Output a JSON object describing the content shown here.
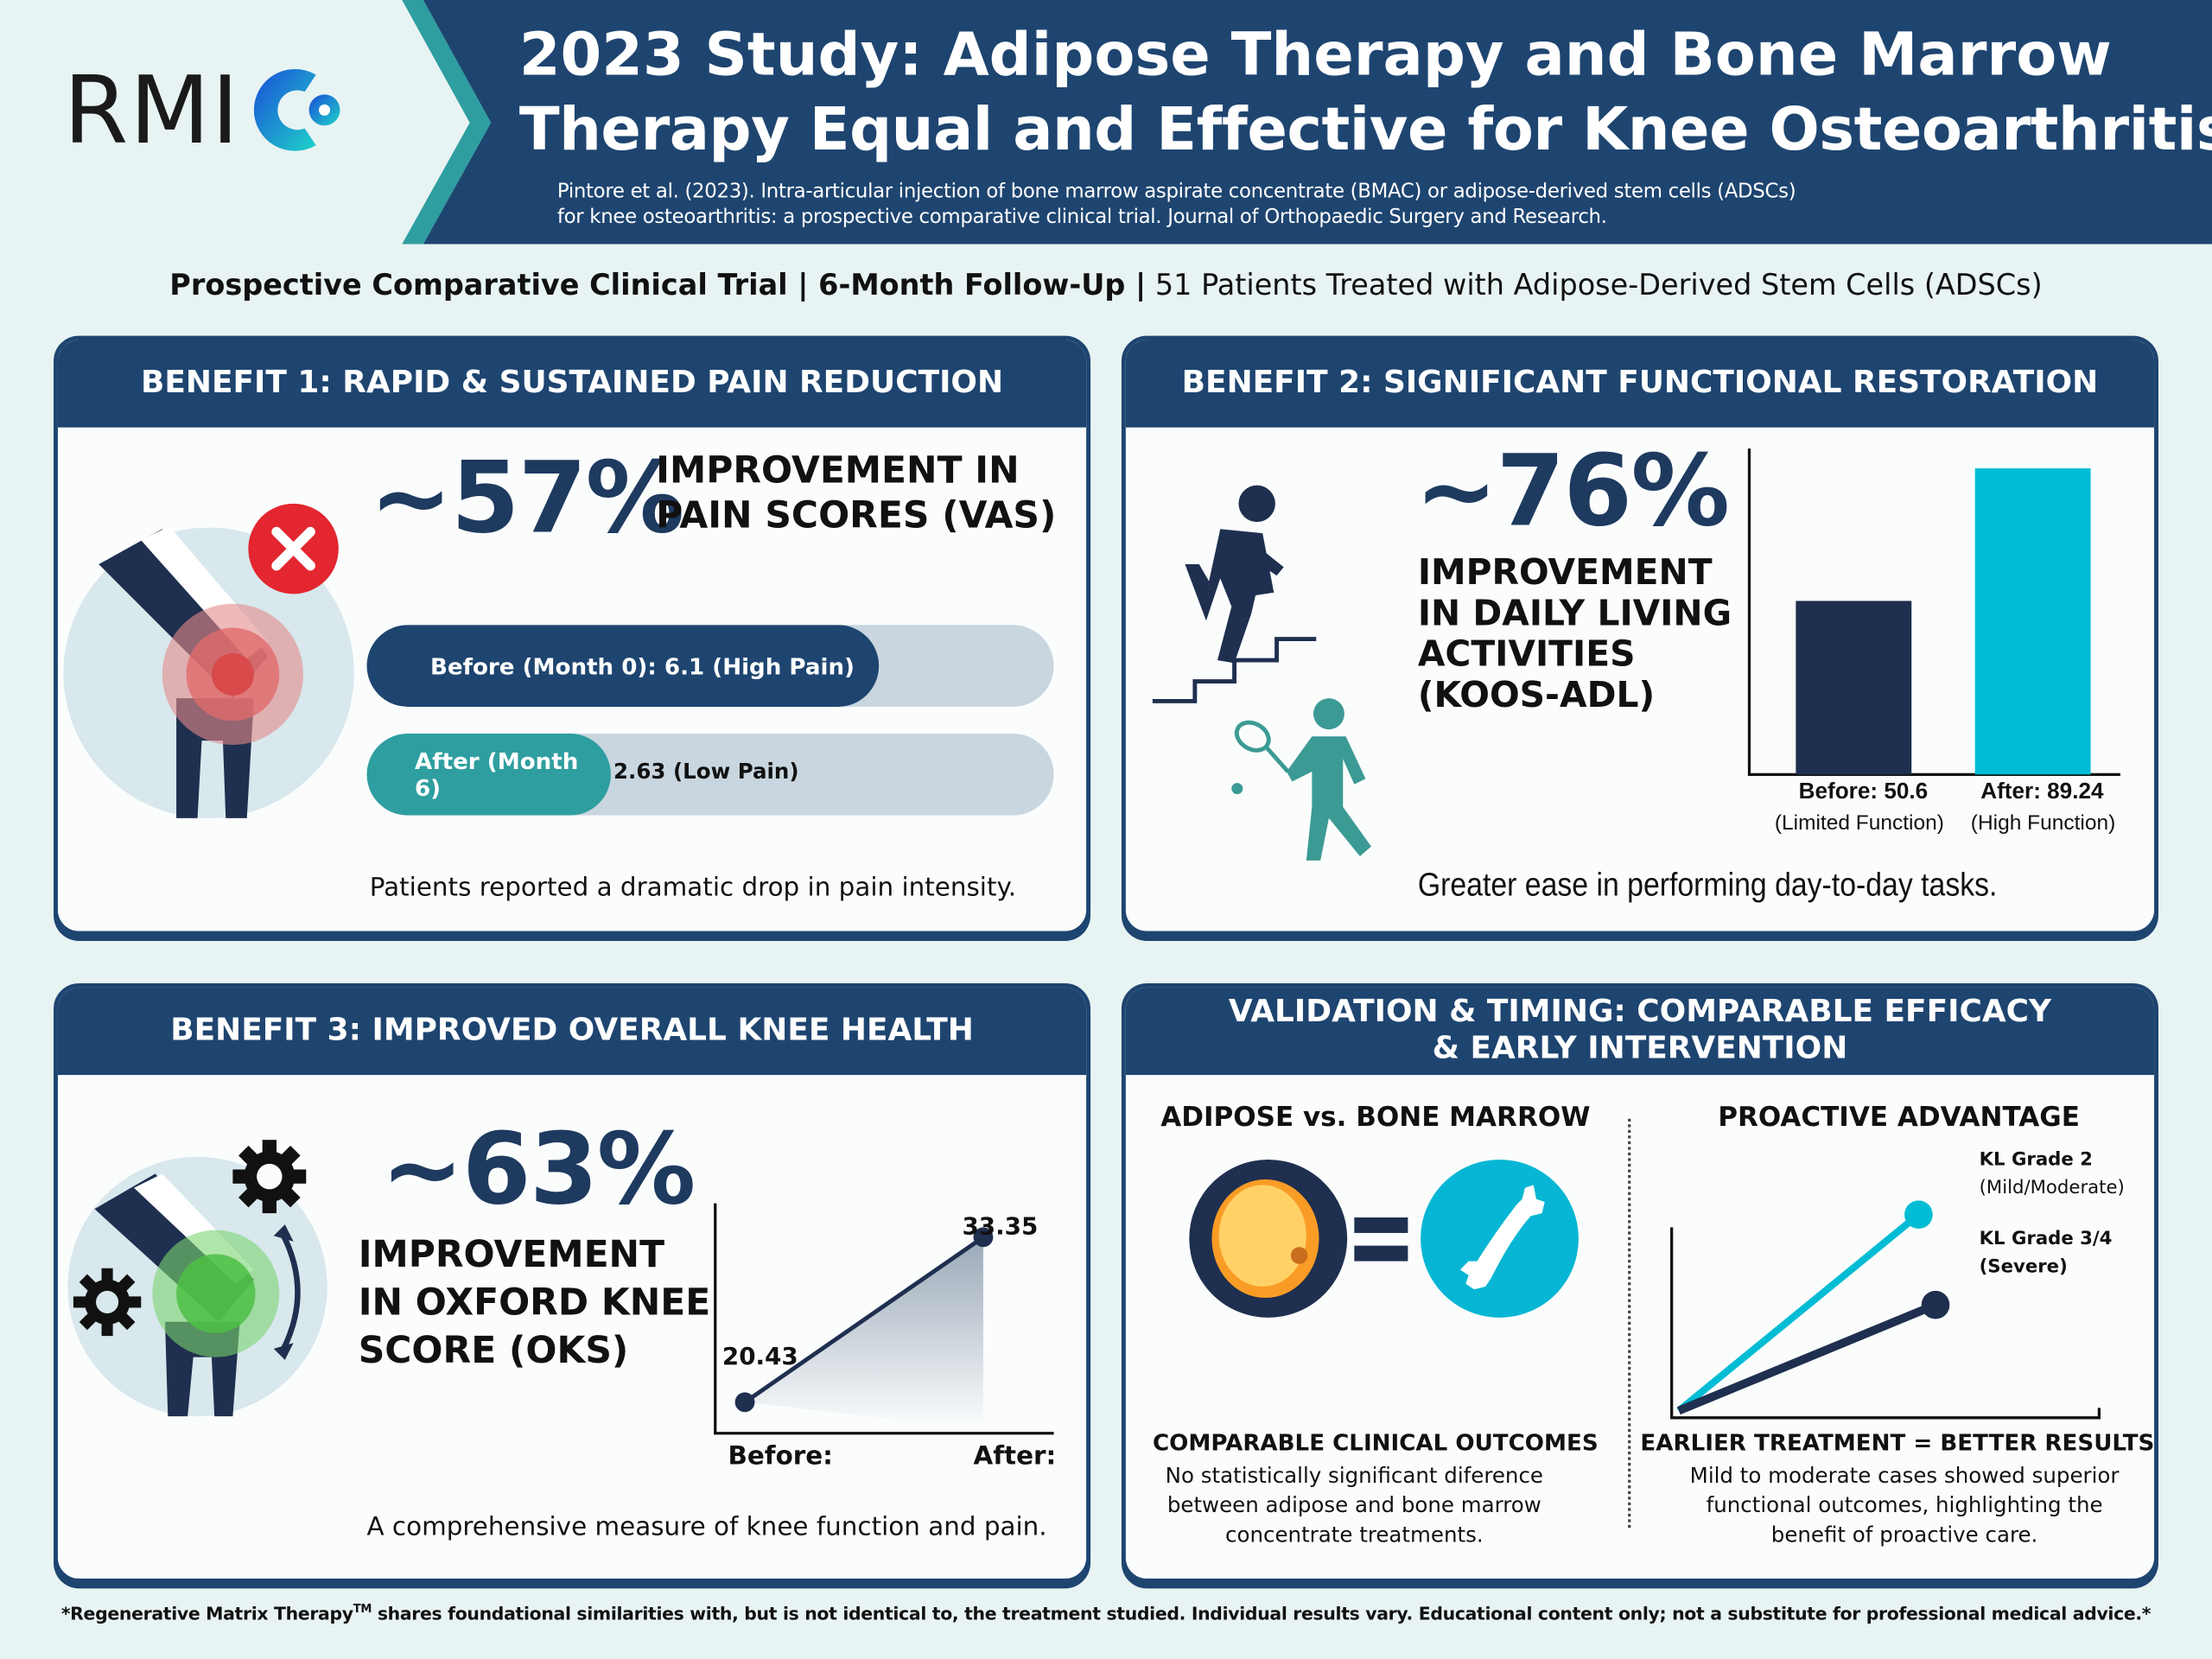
{
  "header": {
    "logo_text": "RMI",
    "title_line1": "2023 Study: Adipose Therapy and Bone Marrow",
    "title_line2": "Therapy Equal and Effective for Knee Osteoarthritis",
    "citation_line1": "Pintore et al. (2023). Intra-articular injection of bone marrow aspirate concentrate (BMAC) or adipose-derived stem cells (ADSCs)",
    "citation_line2": "for knee osteoarthritis: a prospective comparative clinical trial. Journal of Orthopaedic Surgery and Research.",
    "colors": {
      "navy": "#1e4570",
      "teal": "#2e9ea0",
      "cyan": "#00bcd4"
    }
  },
  "subtitle": {
    "bold": "Prospective Comparative Clinical Trial | 6-Month Follow-Up |",
    "regular": " 51 Patients Treated with Adipose-Derived Stem Cells (ADSCs)"
  },
  "benefit1": {
    "title": "BENEFIT 1: RAPID & SUSTAINED PAIN REDUCTION",
    "stat": "~57%",
    "stat_label_line1": "IMPROVEMENT IN",
    "stat_label_line2": "PAIN SCORES (VAS)",
    "before_label": "Before (Month 0): 6.1 (High Pain)",
    "before_fraction": 0.745,
    "after_label": "After (Month 6)",
    "after_value": "2.63 (Low Pain)",
    "after_fraction": 0.355,
    "caption": "Patients reported a dramatic drop in pain intensity.",
    "icons": [
      "knee-icon",
      "x-circle-icon"
    ]
  },
  "benefit2": {
    "title": "BENEFIT 2: SIGNIFICANT FUNCTIONAL RESTORATION",
    "stat": "~76%",
    "stat_label": [
      "IMPROVEMENT",
      "IN DAILY LIVING",
      "ACTIVITIES",
      "(KOOS-ADL)"
    ],
    "caption": "Greater ease in performing day-to-day tasks.",
    "icons": [
      "stair-climber-icon",
      "tennis-player-icon"
    ]
  },
  "benefit3": {
    "title": "BENEFIT 3: IMPROVED OVERALL KNEE HEALTH",
    "stat": "~63%",
    "stat_label": [
      "IMPROVEMENT",
      "IN OXFORD KNEE",
      "SCORE (OKS)"
    ],
    "caption": "A comprehensive measure of knee function and pain.",
    "icons": [
      "knee-icon",
      "gear-icon",
      "rotation-arrow-icon"
    ]
  },
  "validation": {
    "title_line1": "VALIDATION & TIMING: COMPARABLE EFFICACY",
    "title_line2": "& EARLY INTERVENTION",
    "left_heading": "ADIPOSE vs. BONE MARROW",
    "left_subheading": "COMPARABLE CLINICAL OUTCOMES",
    "left_desc": [
      "No statistically significant diference",
      "between adipose and bone marrow",
      "concentrate treatments."
    ],
    "right_heading": "PROACTIVE ADVANTAGE",
    "right_subheading": "EARLIER TREATMENT = BETTER RESULTS",
    "right_desc": [
      "Mild to moderate cases showed superior",
      "functional outcomes, highlighting the",
      "benefit of proactive care."
    ],
    "grade2_label": "KL Grade 2",
    "grade2_sub": "(Mild/Moderate)",
    "grade34_label": "KL Grade 3/4",
    "grade34_sub": "(Severe)",
    "icons": [
      "fat-cell-icon",
      "equals-icon",
      "bone-icon"
    ]
  },
  "footer": {
    "text_a": "*Regenerative Matrix Therapy",
    "tm": "TM",
    "text_b": " shares foundational similarities with, but is not identical to, the treatment studied. Individual results vary. Educational content only; not a substitute for professional medical advice.*"
  },
  "chart_data": [
    {
      "type": "bar",
      "categories": [
        "Before",
        "After"
      ],
      "values": [
        50.6,
        89.24
      ],
      "tick_labels": [
        "Before: 50.6",
        "After: 89.24"
      ],
      "sub_labels": [
        "(Limited Function)",
        "(High Function)"
      ],
      "colors": [
        "#1f2f4f",
        "#00bcd4"
      ],
      "ylim": [
        0,
        95
      ],
      "grid": false
    },
    {
      "type": "line",
      "categories": [
        "Before:",
        "After:"
      ],
      "values": [
        20.43,
        33.35
      ],
      "value_labels": [
        "20.43",
        "33.35"
      ],
      "ylim": [
        18,
        36
      ],
      "grid": false,
      "area_fill": true
    },
    {
      "type": "line",
      "series": [
        {
          "name": "KL Grade 2 (Mild/Moderate)",
          "color": "#00bcd4",
          "slope": "steep"
        },
        {
          "name": "KL Grade 3/4 (Severe)",
          "color": "#1f2f4f",
          "slope": "shallow"
        }
      ],
      "grid": false
    }
  ]
}
